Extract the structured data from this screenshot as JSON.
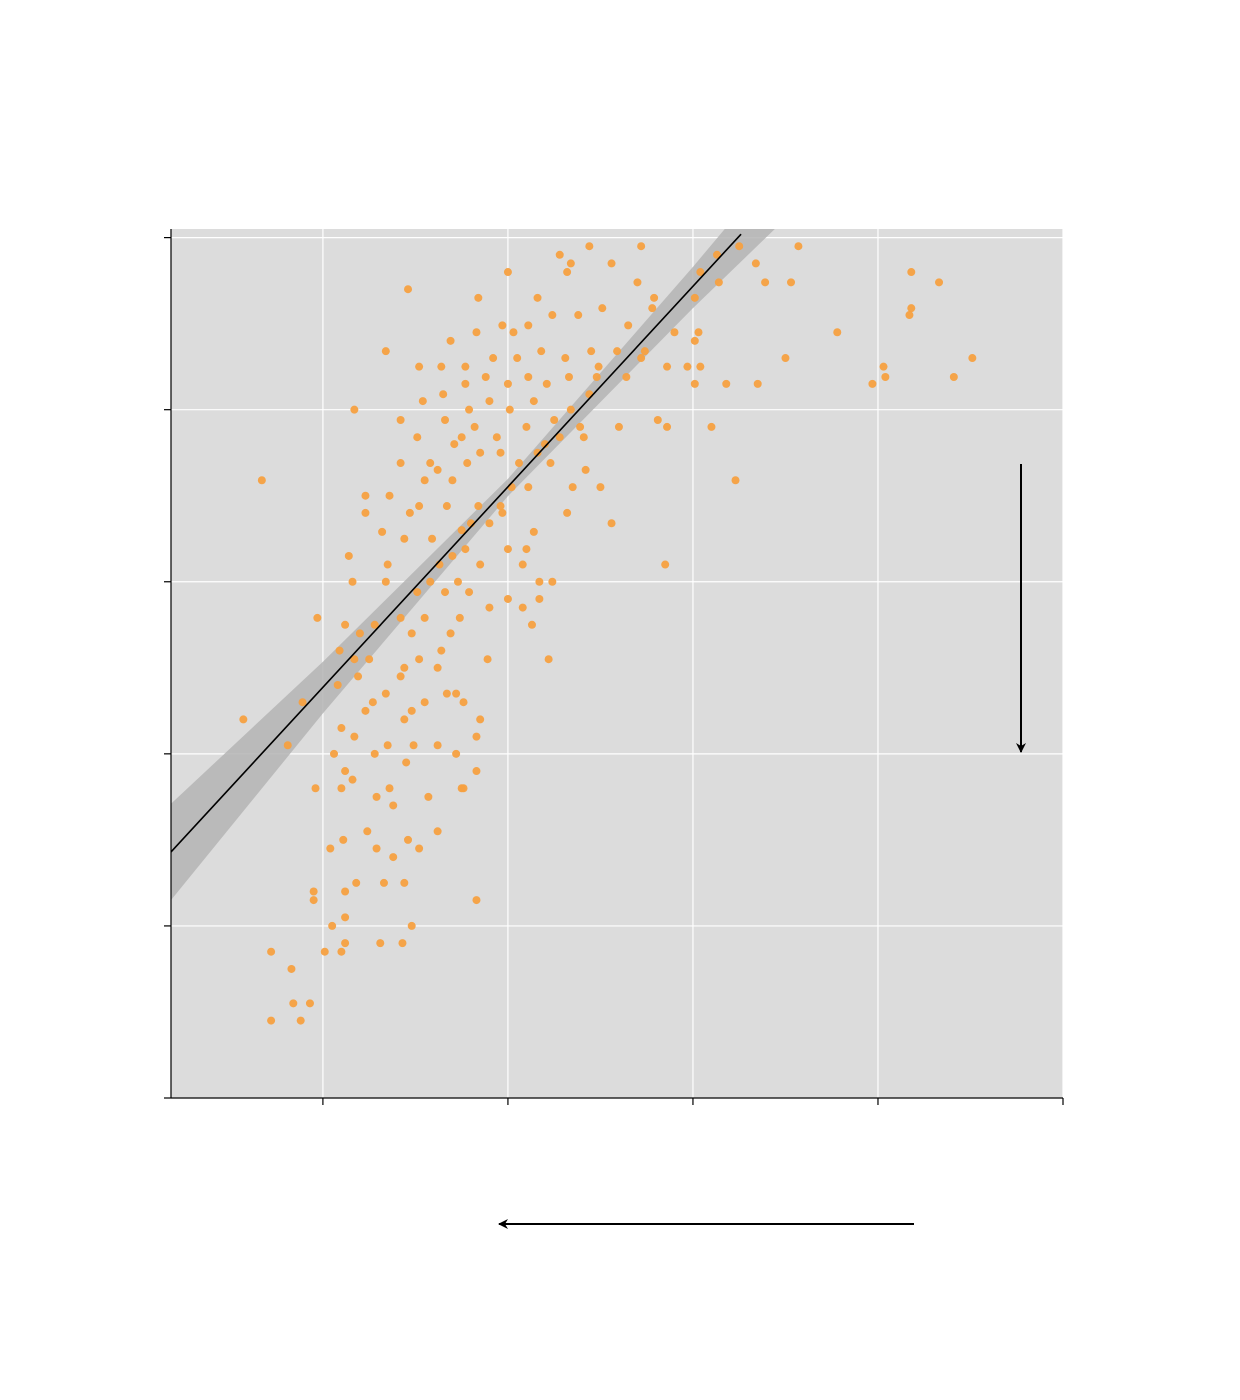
{
  "chart_data": {
    "type": "scatter",
    "color": "#f5a040",
    "xlim": [
      0.179,
      5
    ],
    "ylim": [
      0,
      5.05
    ],
    "xticks": [
      1,
      2,
      3,
      4,
      5
    ],
    "yticks": [
      0,
      1,
      2,
      3,
      4,
      5
    ],
    "grid": true,
    "fit": {
      "color": "#000000",
      "x": [
        0.179,
        3.26
      ],
      "y": [
        1.43,
        5.02
      ]
    },
    "band": {
      "color": "#b4b4b4",
      "x": [
        0.179,
        1,
        2,
        3,
        3.5
      ],
      "lower": [
        1.15,
        2.235,
        3.498,
        4.59,
        5.11
      ],
      "upper": [
        1.71,
        2.535,
        3.598,
        4.83,
        5.47
      ]
    },
    "x": [
      0.67,
      0.57,
      0.72,
      0.88,
      0.84,
      0.93,
      0.83,
      0.72,
      0.81,
      0.89,
      0.97,
      0.95,
      0.95,
      0.96,
      1.01,
      1.1,
      1.12,
      1.12,
      1.12,
      1.04,
      1.11,
      1.05,
      1.18,
      1.31,
      1.43,
      1.48,
      1.44,
      1.33,
      1.29,
      1.24,
      1.38,
      1.46,
      1.52,
      1.62,
      1.57,
      1.76,
      1.83,
      1.83,
      1.1,
      1.12,
      1.16,
      1.06,
      1.29,
      1.38,
      1.36,
      1.45,
      1.49,
      1.62,
      1.72,
      1.75,
      1.83,
      1.85,
      1.67,
      1.72,
      1.76,
      1.55,
      1.48,
      1.44,
      1.34,
      1.27,
      1.23,
      1.17,
      1.1,
      1.35,
      1.28,
      1.08,
      1.19,
      1.09,
      1.17,
      1.25,
      1.2,
      1.28,
      1.12,
      1.42,
      1.34,
      1.16,
      1.14,
      1.35,
      1.42,
      1.44,
      1.52,
      1.62,
      1.64,
      1.69,
      1.74,
      1.89,
      1.9,
      1.48,
      1.55,
      1.51,
      1.58,
      1.66,
      1.73,
      1.79,
      1.85,
      1.63,
      1.7,
      1.77,
      1.59,
      1.44,
      1.47,
      1.36,
      1.23,
      1.32,
      1.23,
      1.42,
      1.55,
      1.62,
      1.7,
      1.78,
      1.9,
      1.97,
      2.0,
      2.0,
      2.08,
      2.13,
      2.17,
      2.24,
      2.22,
      2.08,
      2.1,
      2.14,
      2.17,
      2.02,
      2.06,
      2.11,
      2.16,
      2.23,
      2.28,
      2.35,
      2.32,
      2.42,
      2.5,
      2.56,
      2.85,
      3.23,
      3.1,
      2.6,
      2.41,
      2.39,
      1.94,
      1.82,
      1.75,
      1.66,
      1.51,
      1.42,
      1.17,
      1.79,
      1.9,
      2.01,
      2.14,
      2.25,
      2.34,
      2.44,
      1.54,
      1.65,
      1.77,
      1.88,
      2.0,
      2.11,
      2.21,
      2.33,
      2.48,
      1.52,
      1.64,
      1.77,
      1.92,
      2.05,
      2.18,
      2.31,
      2.45,
      2.59,
      2.72,
      2.86,
      2.97,
      3.04,
      3.01,
      3.18,
      3.35,
      1.69,
      1.83,
      1.97,
      2.11,
      2.24,
      2.38,
      2.51,
      2.65,
      2.78,
      2.9,
      3.03,
      3.01,
      1.34,
      1.46,
      1.84,
      2.0,
      2.16,
      2.32,
      2.28,
      2.34,
      2.44,
      2.56,
      2.7,
      2.72,
      2.79,
      3.01,
      3.04,
      3.13,
      3.14,
      3.25,
      3.34,
      3.39,
      3.53,
      3.57,
      3.5,
      3.78,
      3.97,
      4.03,
      4.04,
      4.18,
      4.18,
      4.17,
      4.33,
      4.41,
      4.51,
      2.81,
      2.86,
      2.74,
      2.64,
      2.49,
      2.03,
      2.1,
      2.2,
      1.96,
      1.85,
      1.71,
      1.58,
      1.52,
      1.67,
      1.8,
      1.75,
      1.96,
      1.84
    ],
    "values": [
      3.59,
      2.2,
      0.45,
      0.45,
      0.55,
      0.55,
      0.75,
      0.85,
      2.05,
      2.3,
      2.79,
      1.2,
      1.15,
      1.8,
      0.85,
      0.85,
      0.9,
      1.05,
      1.2,
      1.45,
      1.5,
      1.0,
      1.25,
      0.9,
      0.9,
      1.0,
      1.25,
      1.25,
      1.45,
      1.55,
      1.4,
      1.5,
      1.45,
      1.55,
      1.75,
      1.8,
      1.9,
      1.15,
      1.8,
      1.9,
      1.85,
      2.0,
      1.75,
      1.7,
      1.8,
      1.95,
      2.05,
      2.05,
      2.0,
      1.8,
      2.1,
      2.2,
      2.35,
      2.35,
      2.3,
      2.3,
      2.25,
      2.2,
      2.35,
      2.3,
      2.25,
      2.1,
      2.15,
      2.05,
      2.0,
      2.4,
      2.45,
      2.6,
      2.55,
      2.55,
      2.7,
      2.75,
      2.75,
      2.79,
      3.0,
      3.0,
      3.15,
      3.1,
      2.45,
      2.5,
      2.55,
      2.5,
      2.6,
      2.7,
      2.79,
      2.55,
      2.85,
      2.7,
      2.79,
      2.94,
      3.0,
      2.94,
      3.0,
      2.94,
      3.1,
      3.1,
      3.15,
      3.19,
      3.25,
      3.25,
      3.4,
      3.5,
      3.5,
      3.29,
      3.4,
      3.69,
      3.59,
      3.65,
      3.59,
      3.69,
      3.34,
      3.4,
      3.19,
      2.9,
      2.85,
      2.75,
      3.0,
      3.0,
      2.55,
      3.1,
      3.19,
      3.29,
      2.9,
      3.55,
      3.69,
      3.55,
      3.75,
      3.69,
      3.84,
      3.55,
      3.4,
      3.65,
      3.55,
      3.34,
      3.1,
      3.59,
      3.9,
      3.9,
      3.84,
      3.9,
      3.84,
      3.9,
      3.84,
      3.94,
      3.84,
      3.94,
      4.0,
      4.0,
      4.05,
      4.0,
      4.05,
      3.94,
      4.0,
      4.09,
      4.05,
      4.09,
      4.15,
      4.19,
      4.15,
      4.19,
      4.15,
      4.19,
      4.19,
      4.25,
      4.25,
      4.25,
      4.3,
      4.3,
      4.34,
      4.3,
      4.34,
      4.34,
      4.3,
      4.25,
      4.25,
      4.25,
      4.15,
      4.15,
      4.15,
      4.4,
      4.45,
      4.49,
      4.49,
      4.55,
      4.55,
      4.59,
      4.49,
      4.59,
      4.45,
      4.45,
      4.4,
      4.34,
      4.7,
      4.65,
      4.8,
      4.65,
      4.8,
      4.9,
      4.85,
      4.95,
      4.85,
      4.74,
      4.95,
      4.65,
      4.65,
      4.8,
      4.9,
      4.74,
      4.95,
      4.85,
      4.74,
      4.74,
      4.95,
      4.3,
      4.45,
      4.15,
      4.25,
      4.19,
      4.8,
      4.59,
      4.55,
      4.74,
      4.19,
      4.3,
      3.94,
      3.9,
      4.34,
      4.19,
      4.25,
      4.45,
      3.9,
      3.8,
      3.75,
      3.75,
      3.8,
      3.69,
      3.44,
      3.44,
      3.34,
      3.3,
      3.44,
      3.44
    ]
  }
}
